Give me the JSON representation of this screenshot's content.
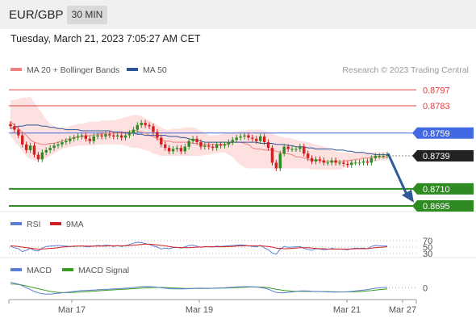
{
  "header": {
    "pair": "EUR/GBP",
    "interval": "30 MIN",
    "datetime": "Tuesday, March 21, 2023 7:05:27 AM CET"
  },
  "colors": {
    "ma20": "#f08080",
    "ma50": "#2e5597",
    "band_fill": "#fde0e0",
    "resistance": "#e04040",
    "pivot": "#4169e1",
    "support": "#2e8b22",
    "current": "#222222",
    "arrow": "#2e5a96",
    "candle_up": "#2e8b22",
    "candle_down": "#d32020",
    "rsi": "#5b7fd4",
    "rsi_ma": "#d32020",
    "macd": "#5b7fd4",
    "macd_signal": "#3a9d23"
  },
  "chart_data": [
    {
      "type": "candlestick",
      "title": "EUR/GBP",
      "legend": [
        {
          "name": "MA 20 + Bollinger Bands",
          "color": "#f08080"
        },
        {
          "name": "MA 50",
          "color": "#2e5597"
        }
      ],
      "legend_position": "top-left",
      "credit": "Research © 2023 Trading Central",
      "x_ticks": [
        "Mar 17",
        "Mar 19",
        "Mar 21",
        "Mar 27"
      ],
      "ylim": [
        0.869,
        0.8805
      ],
      "price_levels": [
        {
          "label": "0.8797",
          "value": 0.8797,
          "role": "resistance"
        },
        {
          "label": "0.8783",
          "value": 0.8783,
          "role": "resistance"
        },
        {
          "label": "0.8759",
          "value": 0.8759,
          "role": "pivot"
        },
        {
          "label": "0.8739",
          "value": 0.8739,
          "role": "current"
        },
        {
          "label": "0.8710",
          "value": 0.871,
          "role": "support"
        },
        {
          "label": "0.8695",
          "value": 0.8695,
          "role": "support"
        }
      ],
      "forecast_arrow": {
        "from": 0.8741,
        "to": 0.8698,
        "direction": "down"
      },
      "series": [
        {
          "name": "Price",
          "values": [
            0.8765,
            0.8762,
            0.8757,
            0.8749,
            0.8744,
            0.8748,
            0.874,
            0.8736,
            0.8742,
            0.8744,
            0.8746,
            0.8748,
            0.8749,
            0.8751,
            0.8752,
            0.8754,
            0.8755,
            0.8756,
            0.8757,
            0.8754,
            0.8752,
            0.8756,
            0.8757,
            0.8756,
            0.8758,
            0.8757,
            0.8756,
            0.8757,
            0.8755,
            0.8757,
            0.8759,
            0.8762,
            0.8766,
            0.8768,
            0.8766,
            0.8765,
            0.876,
            0.8755,
            0.8749,
            0.8746,
            0.8743,
            0.8745,
            0.8746,
            0.8743,
            0.8747,
            0.8752,
            0.8754,
            0.8751,
            0.8747,
            0.8748,
            0.8747,
            0.8746,
            0.8749,
            0.8748,
            0.8749,
            0.8751,
            0.8753,
            0.8755,
            0.8756,
            0.8757,
            0.8755,
            0.8754,
            0.8752,
            0.8756,
            0.8751,
            0.8746,
            0.8733,
            0.8728,
            0.8741,
            0.8747,
            0.8745,
            0.8745,
            0.8745,
            0.8747,
            0.8741,
            0.8737,
            0.8734,
            0.8736,
            0.8735,
            0.8733,
            0.8733,
            0.8735,
            0.8733,
            0.8733,
            0.8732,
            0.8731,
            0.8733,
            0.8733,
            0.8733,
            0.8734,
            0.8733,
            0.8737,
            0.8739,
            0.8739,
            0.8739,
            0.874
          ]
        },
        {
          "name": "MA 20",
          "values": [
            0.8769,
            0.8766,
            0.8763,
            0.876,
            0.8757,
            0.8753,
            0.8751,
            0.875,
            0.8749,
            0.8749,
            0.875,
            0.875,
            0.8751,
            0.8752,
            0.8753,
            0.8754,
            0.8755,
            0.8756,
            0.8756,
            0.8756,
            0.8757,
            0.8757,
            0.8758,
            0.8758,
            0.8759,
            0.8759,
            0.8759,
            0.8759,
            0.8759,
            0.876,
            0.876,
            0.8761,
            0.8761,
            0.876,
            0.8759,
            0.8757,
            0.8756,
            0.8754,
            0.8753,
            0.8752,
            0.8752,
            0.8751,
            0.8751,
            0.8751,
            0.8751,
            0.8751,
            0.875,
            0.875,
            0.8749,
            0.8749,
            0.8749,
            0.8749,
            0.8749,
            0.8749,
            0.8749,
            0.875,
            0.8751,
            0.8751,
            0.8751,
            0.875,
            0.8749,
            0.8746,
            0.8745,
            0.8745,
            0.8744,
            0.8744,
            0.8744,
            0.8743,
            0.8742,
            0.8741,
            0.8741,
            0.874,
            0.8738,
            0.8738,
            0.8737,
            0.8736,
            0.8735,
            0.8735,
            0.8735,
            0.8734,
            0.8734,
            0.8734,
            0.8734,
            0.8734,
            0.8734,
            0.8735,
            0.8735,
            0.8736,
            0.8736,
            0.8737,
            0.8737,
            0.8738,
            0.8738,
            0.8738,
            0.8738,
            0.8738
          ]
        },
        {
          "name": "MA 50",
          "values": [
            0.8763,
            0.8764,
            0.8765,
            0.8765,
            0.8766,
            0.8766,
            0.8766,
            0.8766,
            0.8765,
            0.8765,
            0.8764,
            0.8764,
            0.8763,
            0.8763,
            0.8762,
            0.8762,
            0.8762,
            0.8762,
            0.8761,
            0.8761,
            0.8761,
            0.8761,
            0.8761,
            0.8761,
            0.8761,
            0.8761,
            0.876,
            0.876,
            0.876,
            0.8759,
            0.8759,
            0.8759,
            0.8758,
            0.8758,
            0.8757,
            0.8757,
            0.8757,
            0.8757,
            0.8757,
            0.8757,
            0.8756,
            0.8756,
            0.8756,
            0.8755,
            0.8755,
            0.8754,
            0.8753,
            0.8753,
            0.8752,
            0.8751,
            0.8751,
            0.8751,
            0.8751,
            0.8751,
            0.8751,
            0.8751,
            0.8751,
            0.8751,
            0.8751,
            0.8751,
            0.8751,
            0.8751,
            0.8751,
            0.875,
            0.875,
            0.875,
            0.875,
            0.8749,
            0.8749,
            0.8749,
            0.8748,
            0.8748,
            0.8747,
            0.8747,
            0.8747,
            0.8746,
            0.8746,
            0.8745,
            0.8745,
            0.8745,
            0.8745,
            0.8745,
            0.8744,
            0.8744,
            0.8744,
            0.8743,
            0.8743,
            0.8742,
            0.8742,
            0.8742,
            0.8741,
            0.8741,
            0.874,
            0.874,
            0.874,
            0.874
          ]
        },
        {
          "name": "Bollinger Upper",
          "values": [
            0.8788,
            0.8788,
            0.8789,
            0.879,
            0.879,
            0.8791,
            0.8786,
            0.8781,
            0.8776,
            0.8771,
            0.8767,
            0.8765,
            0.8764,
            0.8764,
            0.8764,
            0.8765,
            0.8766,
            0.8767,
            0.8767,
            0.8768,
            0.8769,
            0.8769,
            0.8769,
            0.877,
            0.877,
            0.877,
            0.877,
            0.8771,
            0.8772,
            0.8773,
            0.8774,
            0.8775,
            0.8775,
            0.8774,
            0.8772,
            0.877,
            0.8768,
            0.8766,
            0.8764,
            0.8762,
            0.8762,
            0.8763,
            0.8763,
            0.8763,
            0.8764,
            0.8764,
            0.8764,
            0.8763,
            0.8761,
            0.8759,
            0.8757,
            0.8757,
            0.8757,
            0.8758,
            0.8759,
            0.8759,
            0.876,
            0.876,
            0.8761,
            0.8761,
            0.8762,
            0.8762,
            0.8762,
            0.8762,
            0.8761,
            0.876,
            0.8759,
            0.8757,
            0.8756,
            0.8755,
            0.8755,
            0.8754,
            0.8753,
            0.8752,
            0.8752,
            0.8751,
            0.875,
            0.8749,
            0.8748,
            0.8747,
            0.8746,
            0.8744,
            0.8743,
            0.8742,
            0.8742,
            0.8742,
            0.8742,
            0.8742,
            0.8742,
            0.8742,
            0.8742,
            0.8742,
            0.8742,
            0.8742,
            0.8742,
            0.8742
          ]
        },
        {
          "name": "Bollinger Lower",
          "values": [
            0.8756,
            0.8752,
            0.8748,
            0.8743,
            0.8739,
            0.8736,
            0.8735,
            0.8735,
            0.8736,
            0.8737,
            0.8739,
            0.8741,
            0.8743,
            0.8745,
            0.8746,
            0.8747,
            0.8747,
            0.8748,
            0.8748,
            0.8748,
            0.8748,
            0.8748,
            0.8749,
            0.8749,
            0.8749,
            0.8749,
            0.8749,
            0.8749,
            0.8749,
            0.8748,
            0.8747,
            0.8746,
            0.8746,
            0.8745,
            0.8744,
            0.8743,
            0.8741,
            0.874,
            0.8739,
            0.8739,
            0.8739,
            0.8739,
            0.8739,
            0.8739,
            0.8739,
            0.8739,
            0.8739,
            0.8739,
            0.8739,
            0.874,
            0.874,
            0.8741,
            0.8741,
            0.8742,
            0.8742,
            0.874,
            0.8738,
            0.8734,
            0.8731,
            0.8729,
            0.8728,
            0.8728,
            0.8728,
            0.8728,
            0.8728,
            0.8728,
            0.8728,
            0.8728,
            0.8728,
            0.8728,
            0.8728,
            0.8728,
            0.8728,
            0.8728,
            0.8728,
            0.8728,
            0.8727,
            0.8727,
            0.8727,
            0.8727,
            0.8727,
            0.8727,
            0.8727,
            0.8727,
            0.8728,
            0.8729,
            0.8731,
            0.8733,
            0.8734,
            0.8734,
            0.8734,
            0.8734,
            0.8734,
            0.8735,
            0.8735,
            0.8735
          ]
        }
      ]
    },
    {
      "type": "line",
      "legend": [
        {
          "name": "RSI",
          "color": "#5b7fd4"
        },
        {
          "name": "9MA",
          "color": "#d32020"
        }
      ],
      "y_ticks": [
        "70",
        "50",
        "30"
      ],
      "ylim": [
        20,
        80
      ],
      "series": [
        {
          "name": "RSI",
          "values": [
            52,
            48,
            45,
            36,
            40,
            46,
            40,
            38,
            47,
            52,
            53,
            54,
            55,
            54,
            53,
            52,
            52,
            53,
            54,
            51,
            51,
            53,
            55,
            54,
            56,
            55,
            52,
            55,
            52,
            55,
            58,
            62,
            65,
            64,
            61,
            58,
            54,
            50,
            44,
            47,
            45,
            48,
            49,
            47,
            51,
            55,
            56,
            53,
            49,
            52,
            51,
            50,
            53,
            52,
            53,
            54,
            55,
            56,
            57,
            56,
            54,
            52,
            51,
            55,
            48,
            42,
            32,
            28,
            44,
            52,
            49,
            50,
            51,
            52,
            46,
            43,
            40,
            45,
            44,
            42,
            43,
            46,
            44,
            44,
            43,
            42,
            45,
            47,
            46,
            47,
            45,
            52,
            55,
            54,
            53,
            54
          ]
        },
        {
          "name": "9MA",
          "values": [
            54,
            53,
            52,
            50,
            48,
            47,
            45,
            44,
            44,
            45,
            46,
            47,
            48,
            50,
            51,
            52,
            53,
            53,
            53,
            53,
            53,
            53,
            53,
            53,
            53,
            54,
            54,
            54,
            54,
            54,
            55,
            56,
            57,
            58,
            59,
            59,
            58,
            57,
            55,
            54,
            52,
            50,
            49,
            48,
            48,
            48,
            49,
            50,
            50,
            51,
            51,
            51,
            51,
            51,
            51,
            52,
            52,
            53,
            54,
            54,
            54,
            54,
            54,
            54,
            53,
            52,
            50,
            47,
            46,
            45,
            45,
            46,
            47,
            48,
            48,
            48,
            47,
            46,
            45,
            45,
            44,
            44,
            44,
            44,
            44,
            44,
            44,
            45,
            45,
            45,
            45,
            47,
            48,
            49,
            50,
            51
          ]
        }
      ]
    },
    {
      "type": "line",
      "legend": [
        {
          "name": "MACD",
          "color": "#5b7fd4"
        },
        {
          "name": "MACD Signal",
          "color": "#3a9d23"
        }
      ],
      "y_ticks": [
        "0"
      ],
      "x_ticks": [
        "Mar 17",
        "Mar 19",
        "Mar 21",
        "Mar 27"
      ],
      "ylim": [
        -12,
        10
      ],
      "series": [
        {
          "name": "MACD",
          "values": [
            6,
            5,
            4,
            2,
            0,
            -2,
            -4,
            -5.5,
            -6.5,
            -7,
            -7,
            -6.5,
            -6,
            -5.5,
            -5,
            -4.5,
            -4,
            -3.5,
            -3,
            -3,
            -2.8,
            -2.5,
            -2.2,
            -2,
            -1.8,
            -1.5,
            -1.3,
            -1,
            -0.8,
            -0.5,
            -0.2,
            0.3,
            0.8,
            1.2,
            1.5,
            1.3,
            1,
            0.5,
            0,
            -0.5,
            -1,
            -1.2,
            -1.2,
            -1.3,
            -1.2,
            -1,
            -0.8,
            -0.5,
            -0.5,
            -0.6,
            -0.6,
            -0.5,
            -0.4,
            -0.2,
            0,
            0.3,
            0.6,
            0.9,
            1.1,
            1.2,
            1.2,
            1.1,
            0.8,
            0.3,
            -0.5,
            -1.5,
            -3.5,
            -5,
            -5.5,
            -5.5,
            -5,
            -4.5,
            -4,
            -3.5,
            -3.5,
            -3.5,
            -3.8,
            -4,
            -4.2,
            -4.3,
            -4.5,
            -4.6,
            -4.7,
            -4.6,
            -4.5,
            -4.3,
            -4,
            -3.5,
            -3,
            -2.5,
            -2,
            -1.2,
            -0.5,
            0,
            0.3,
            0.4
          ]
        },
        {
          "name": "MACD Signal",
          "values": [
            4,
            4,
            3.5,
            3,
            2,
            1,
            0,
            -1,
            -2,
            -3,
            -4,
            -4.5,
            -5,
            -5.2,
            -5.3,
            -5.2,
            -5,
            -4.8,
            -4.5,
            -4.2,
            -4,
            -3.7,
            -3.4,
            -3.1,
            -2.8,
            -2.5,
            -2.3,
            -2,
            -1.8,
            -1.5,
            -1.3,
            -1,
            -0.7,
            -0.4,
            -0.1,
            0.1,
            0.3,
            0.3,
            0.3,
            0.2,
            0,
            -0.2,
            -0.4,
            -0.6,
            -0.7,
            -0.8,
            -0.8,
            -0.8,
            -0.8,
            -0.7,
            -0.7,
            -0.6,
            -0.5,
            -0.4,
            -0.3,
            -0.2,
            0,
            0.2,
            0.4,
            0.6,
            0.8,
            0.9,
            0.9,
            0.8,
            0.5,
            0,
            -0.8,
            -1.6,
            -2.3,
            -2.9,
            -3.3,
            -3.6,
            -3.8,
            -3.9,
            -4,
            -4,
            -4,
            -4,
            -4.1,
            -4.1,
            -4.2,
            -4.3,
            -4.4,
            -4.5,
            -4.5,
            -4.5,
            -4.4,
            -4.3,
            -4.1,
            -3.8,
            -3.5,
            -3.1,
            -2.6,
            -2.1,
            -1.6,
            -1.2
          ]
        }
      ]
    }
  ]
}
